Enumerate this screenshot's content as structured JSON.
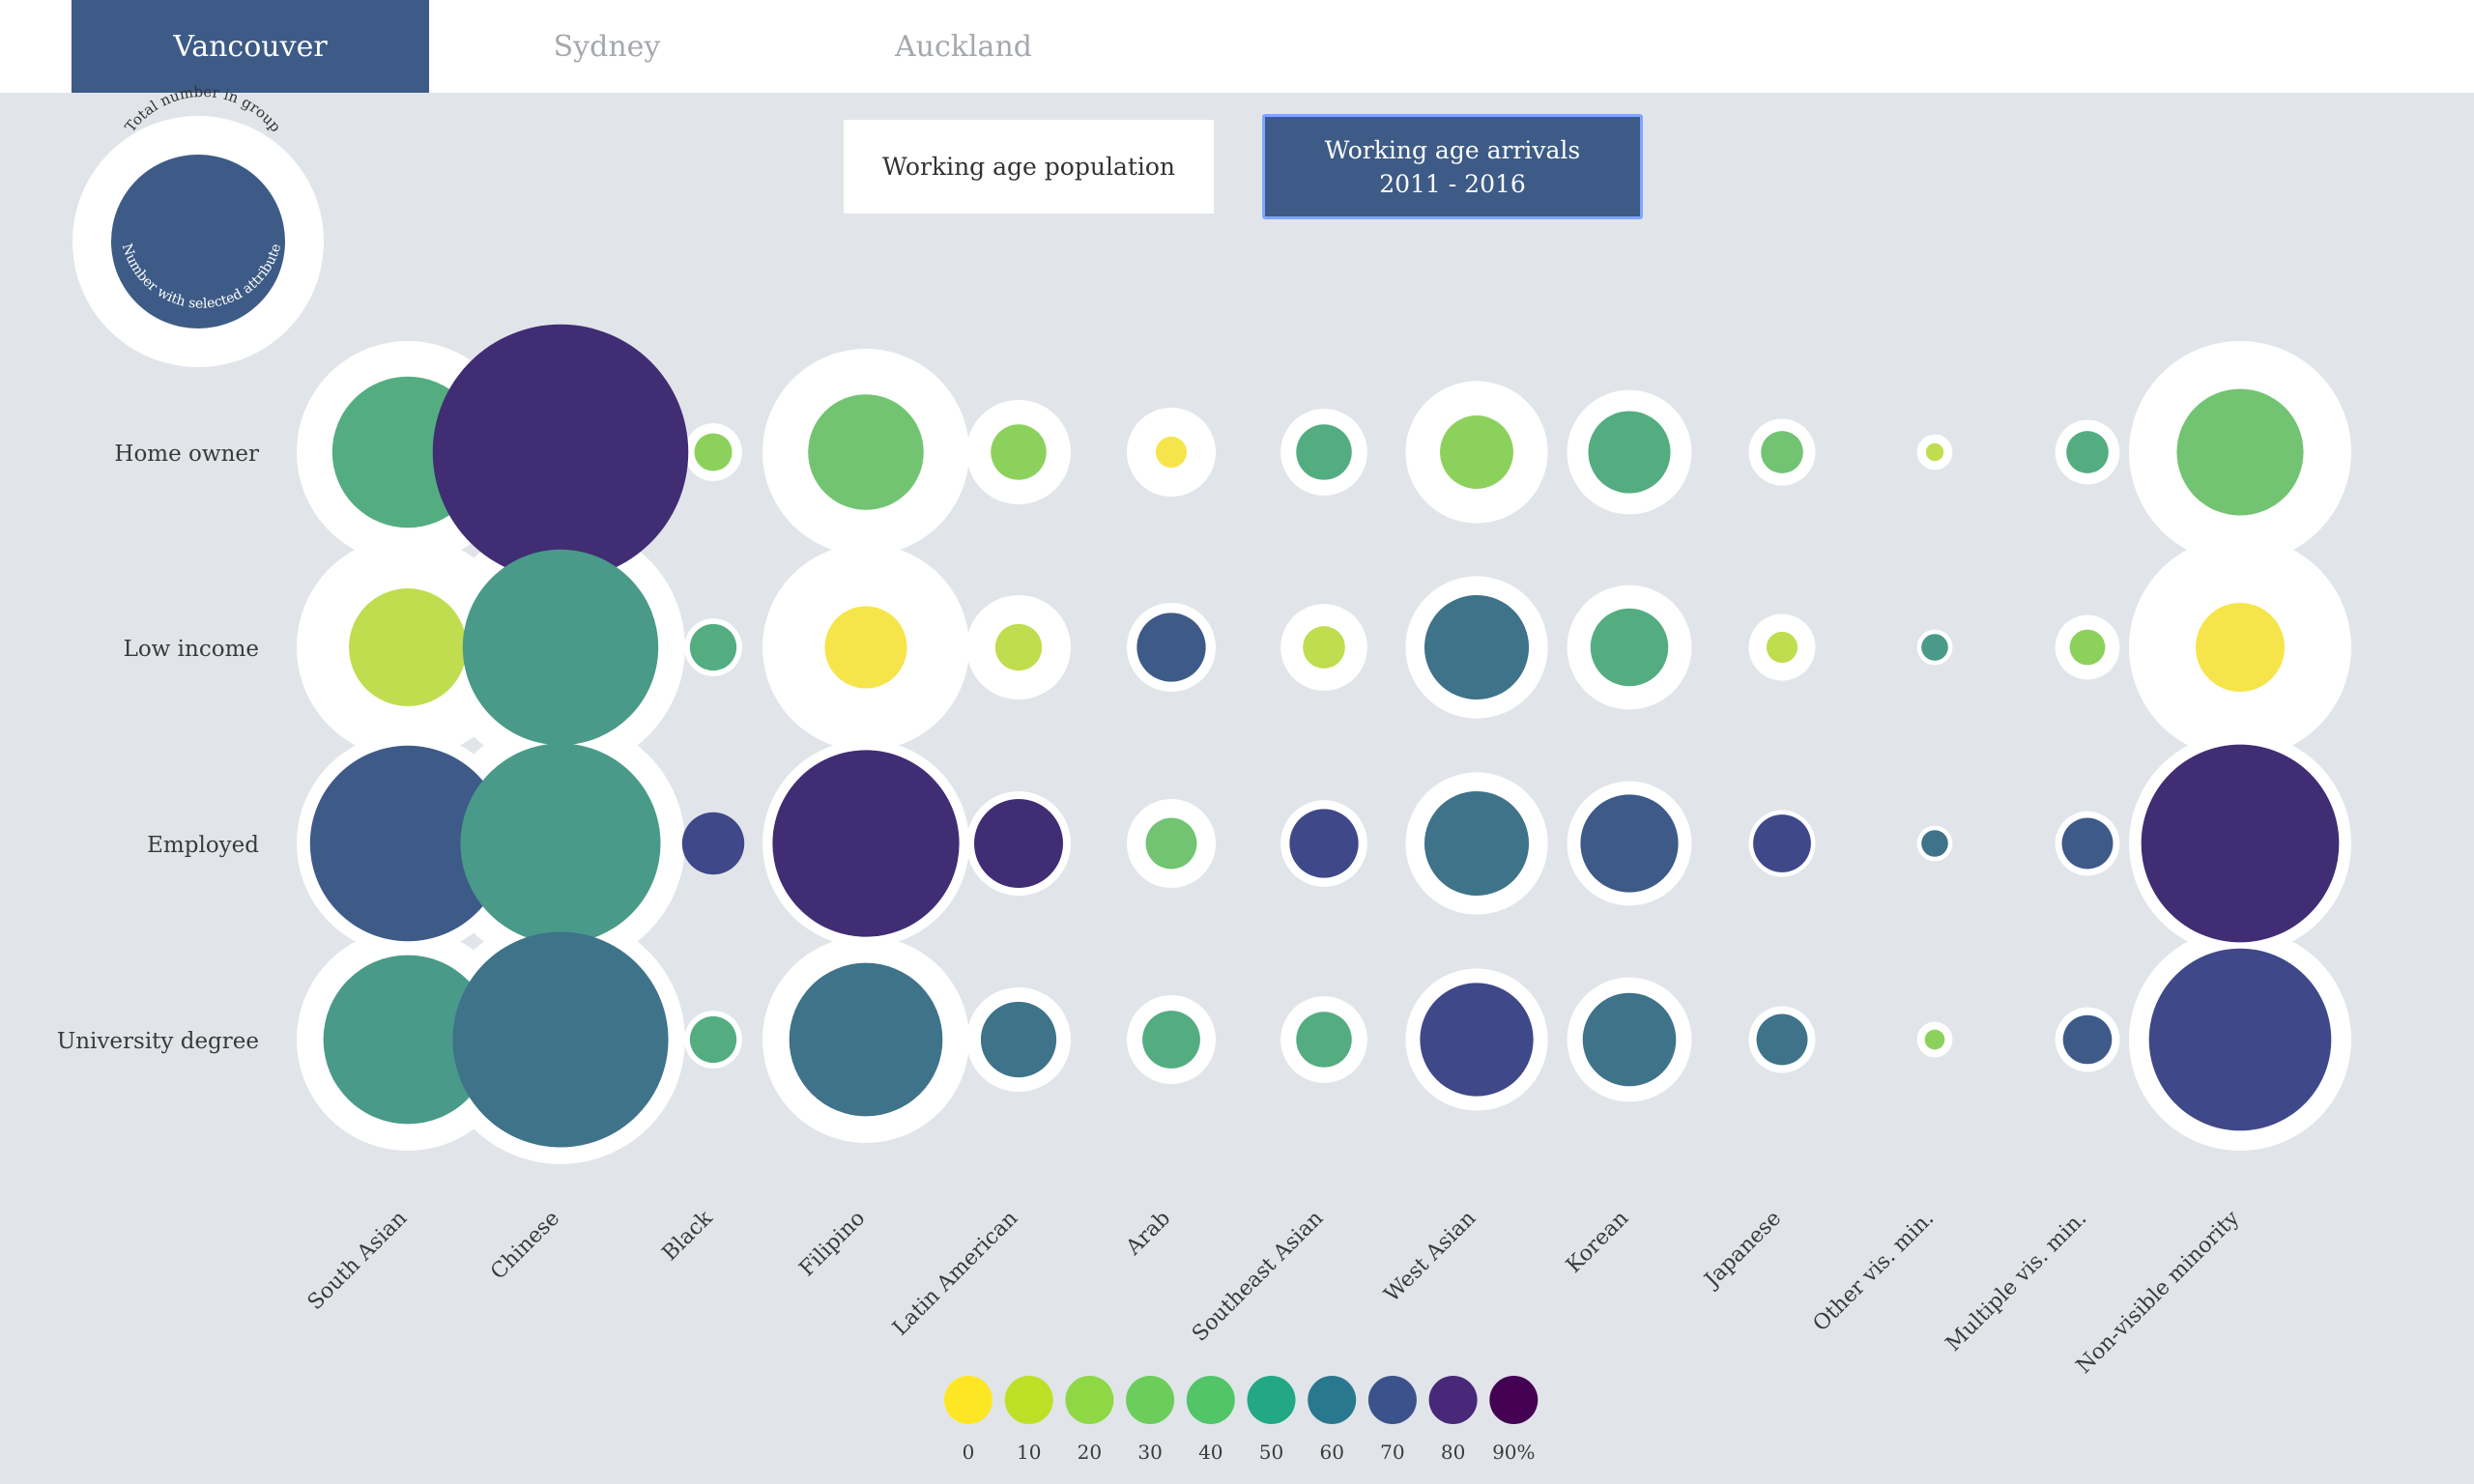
{
  "tabs": [
    {
      "label": "Vancouver",
      "active": true
    },
    {
      "label": "Sydney",
      "active": false
    },
    {
      "label": "Auckland",
      "active": false
    }
  ],
  "toggles": [
    {
      "label": "Working age population",
      "active": false
    },
    {
      "label": "Working age arrivals 2011 - 2016",
      "active": true
    }
  ],
  "key": {
    "outer_label": "Total number in group",
    "inner_label": "Number with selected attribute"
  },
  "chart_data": {
    "type": "bubble-matrix",
    "rows": [
      "Home owner",
      "Low income",
      "Employed",
      "University degree"
    ],
    "columns": [
      "South Asian",
      "Chinese",
      "Black",
      "Filipino",
      "Latin American",
      "Arab",
      "Southeast Asian",
      "West Asian",
      "Korean",
      "Japanese",
      "Other vis. min.",
      "Multiple vis. min.",
      "Non-visible minority"
    ],
    "total_relative_size": [
      1.0,
      1.12,
      0.26,
      0.93,
      0.47,
      0.4,
      0.39,
      0.64,
      0.56,
      0.3,
      0.16,
      0.29,
      1.0
    ],
    "attribute_relative_size": [
      [
        0.68,
        1.15,
        0.17,
        0.52,
        0.25,
        0.14,
        0.25,
        0.33,
        0.37,
        0.19,
        0.08,
        0.19,
        0.57
      ],
      [
        0.53,
        0.88,
        0.21,
        0.37,
        0.21,
        0.31,
        0.19,
        0.47,
        0.35,
        0.14,
        0.12,
        0.16,
        0.4
      ],
      [
        0.88,
        0.9,
        0.28,
        0.84,
        0.4,
        0.23,
        0.31,
        0.47,
        0.44,
        0.26,
        0.12,
        0.23,
        0.89
      ],
      [
        0.76,
        0.97,
        0.21,
        0.69,
        0.34,
        0.26,
        0.25,
        0.51,
        0.42,
        0.23,
        0.09,
        0.22,
        0.82
      ]
    ],
    "percent": [
      [
        40,
        90,
        20,
        30,
        20,
        0,
        40,
        20,
        40,
        30,
        10,
        40,
        30
      ],
      [
        10,
        50,
        40,
        0,
        10,
        70,
        10,
        60,
        40,
        10,
        50,
        20,
        0
      ],
      [
        70,
        50,
        80,
        90,
        90,
        30,
        80,
        60,
        70,
        80,
        60,
        70,
        90
      ],
      [
        50,
        60,
        40,
        60,
        60,
        40,
        40,
        80,
        60,
        60,
        20,
        70,
        80
      ]
    ],
    "legend": {
      "values": [
        0,
        10,
        20,
        30,
        40,
        50,
        60,
        70,
        80,
        90
      ],
      "labels": [
        "0",
        "10",
        "20",
        "30",
        "40",
        "50",
        "60",
        "70",
        "80",
        "90%"
      ],
      "colors": [
        "#fde725",
        "#bddf26",
        "#8fd744",
        "#6ccd5a",
        "#52c569",
        "#22a884",
        "#2a788e",
        "#3b528b",
        "#482878",
        "#440154"
      ]
    },
    "palette": {
      "0": "#f5e54a",
      "10": "#bfdd4e",
      "20": "#8dd15d",
      "30": "#72c472",
      "40": "#54ad81",
      "50": "#4a9a8a",
      "60": "#3e738a",
      "70": "#3e5a88",
      "80": "#3f4888",
      "90": "#412d73"
    }
  }
}
